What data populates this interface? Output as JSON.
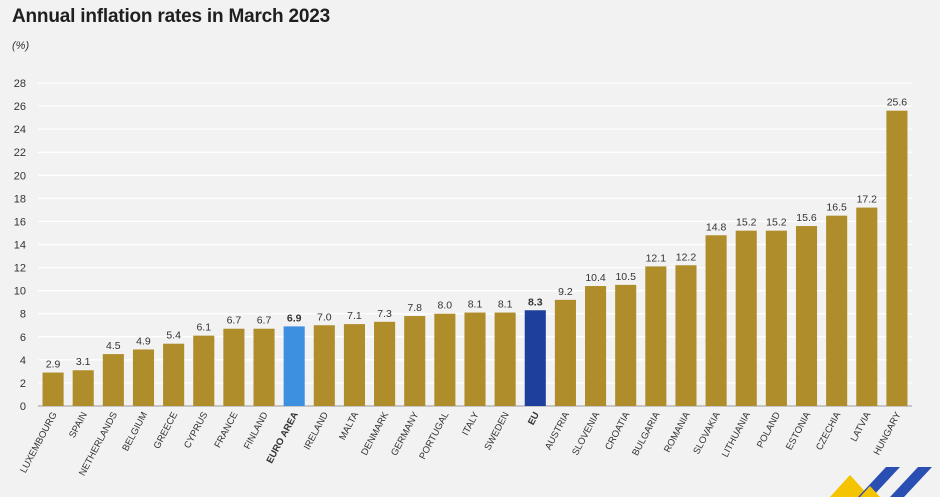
{
  "chart_data": {
    "type": "bar",
    "title": "Annual inflation rates in March 2023",
    "unit": "(%)",
    "xlabel": "",
    "ylabel": "(%)",
    "ylim": [
      0,
      28
    ],
    "yticks": [
      0,
      2,
      4,
      6,
      8,
      10,
      12,
      14,
      16,
      18,
      20,
      22,
      24,
      26,
      28
    ],
    "grid": true,
    "categories": [
      "LUXEMBOURG",
      "SPAIN",
      "NETHERLANDS",
      "BELGIUM",
      "GREECE",
      "CYPRUS",
      "FRANCE",
      "FINLAND",
      "EURO AREA",
      "IRELAND",
      "MALTA",
      "DENMARK",
      "GERMANY",
      "PORTUGAL",
      "ITALY",
      "SWEDEN",
      "EU",
      "AUSTRIA",
      "SLOVENIA",
      "CROATIA",
      "BULGARIA",
      "ROMANIA",
      "SLOVAKIA",
      "LITHUANIA",
      "POLAND",
      "ESTONIA",
      "CZECHIA",
      "LATVIA",
      "HUNGARY"
    ],
    "values": [
      2.9,
      3.1,
      4.5,
      4.9,
      5.4,
      6.1,
      6.7,
      6.7,
      6.9,
      7.0,
      7.1,
      7.3,
      7.8,
      8.0,
      8.1,
      8.1,
      8.3,
      9.2,
      10.4,
      10.5,
      12.1,
      12.2,
      14.8,
      15.2,
      15.2,
      15.6,
      16.5,
      17.2,
      25.6
    ],
    "value_labels": [
      "2.9",
      "3.1",
      "4.5",
      "4.9",
      "5.4",
      "6.1",
      "6.7",
      "6.7",
      "6.9",
      "7.0",
      "7.1",
      "7.3",
      "7.8",
      "8.0",
      "8.1",
      "8.1",
      "8.3",
      "9.2",
      "10.4",
      "10.5",
      "12.1",
      "12.2",
      "14.8",
      "15.2",
      "15.2",
      "15.6",
      "16.5",
      "17.2",
      "25.6"
    ],
    "highlight": {
      "EURO AREA": "#3d8fe0",
      "EU": "#1f3f9c"
    },
    "colors": {
      "default": "#b08d2b",
      "background": "#f2f2f2",
      "grid": "#ffffff",
      "text": "#333333"
    }
  }
}
